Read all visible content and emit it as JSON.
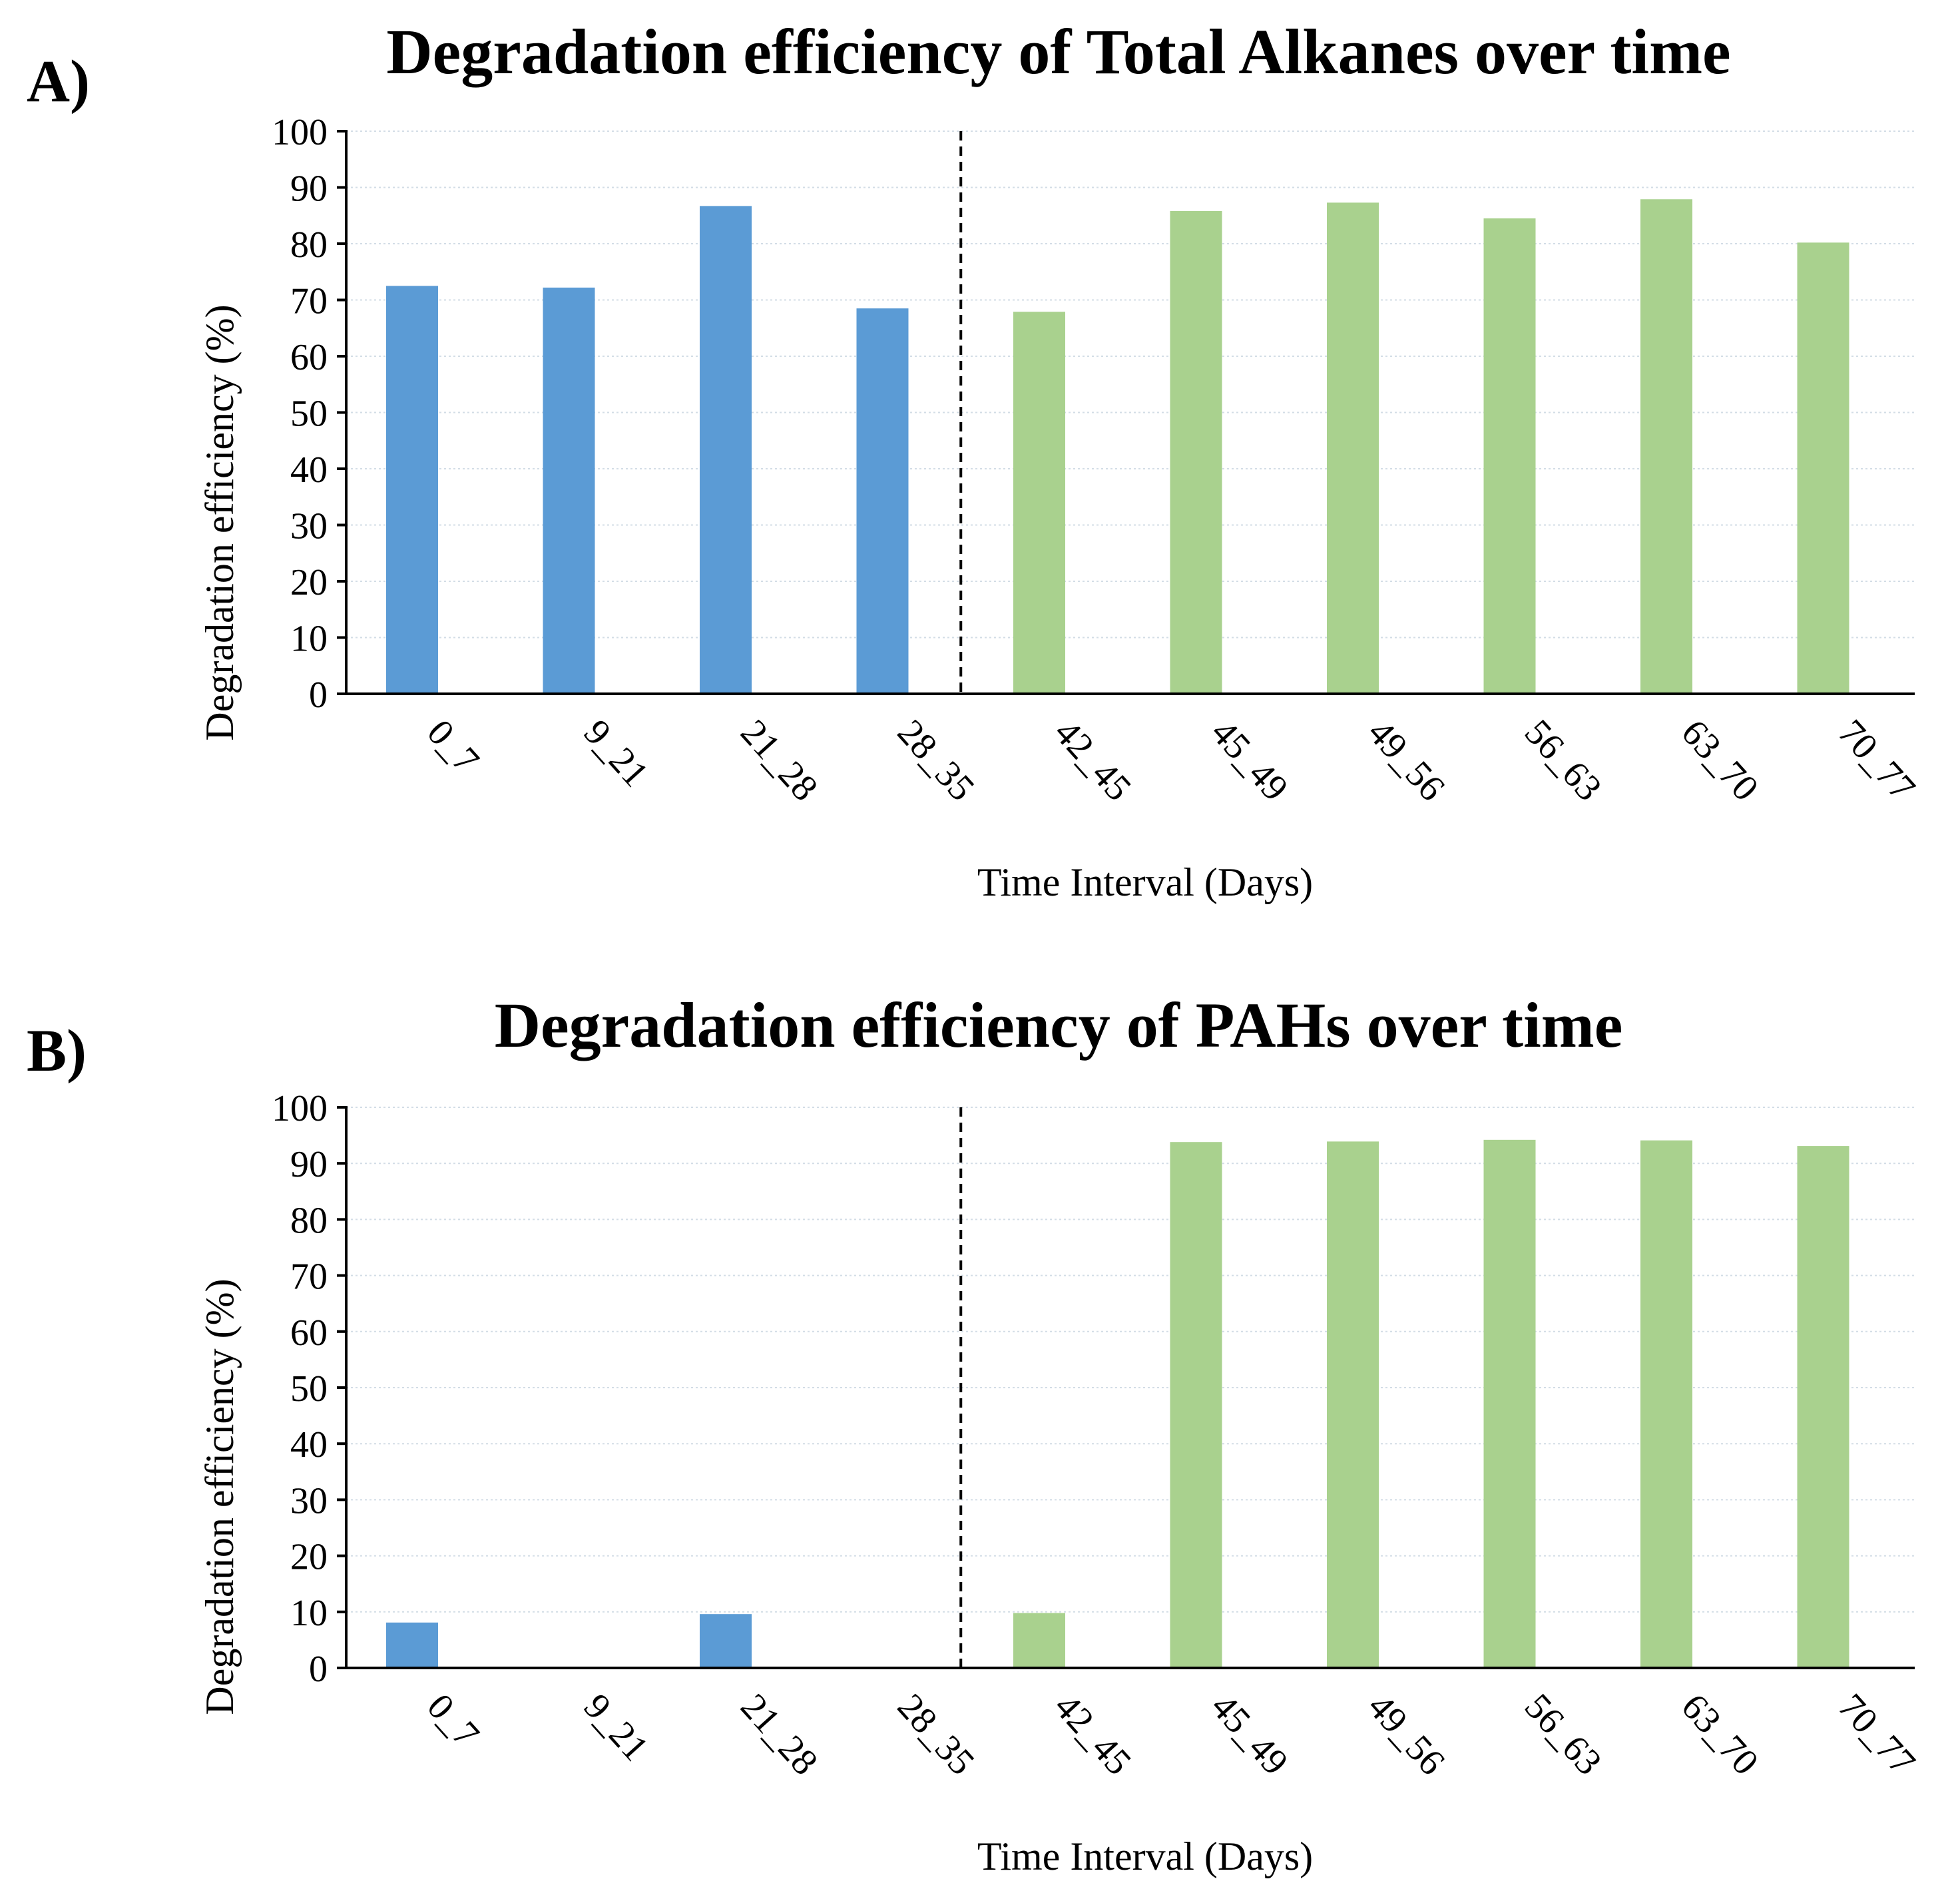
{
  "chart_data": [
    {
      "panel_label": "A)",
      "type": "bar",
      "title": "Degradation efficiency of Total Alkanes over time",
      "xlabel": "Time Interval (Days)",
      "ylabel": "Degradation efficiency (%)",
      "ylim": [
        0,
        100
      ],
      "yticks": [
        0,
        10,
        20,
        30,
        40,
        50,
        60,
        70,
        80,
        90,
        100
      ],
      "grid": true,
      "categories": [
        "0_7",
        "9_21",
        "21_28",
        "28_35",
        "42_45",
        "45_49",
        "49_56",
        "56_63",
        "63_70",
        "70_77"
      ],
      "values": [
        72.5,
        72.2,
        86.7,
        68.5,
        67.9,
        85.8,
        87.3,
        84.5,
        87.9,
        80.2
      ],
      "bar_colors": [
        "#5b9bd5",
        "#5b9bd5",
        "#5b9bd5",
        "#5b9bd5",
        "#a9d18e",
        "#a9d18e",
        "#a9d18e",
        "#a9d18e",
        "#a9d18e",
        "#a9d18e"
      ],
      "divider_after_category": "28_35"
    },
    {
      "panel_label": "B)",
      "type": "bar",
      "title": "Degradation efficiency of PAHs over time",
      "xlabel": "Time Interval (Days)",
      "ylabel": "Degradation efficiency (%)",
      "ylim": [
        0,
        100
      ],
      "yticks": [
        0,
        10,
        20,
        30,
        40,
        50,
        60,
        70,
        80,
        90,
        100
      ],
      "grid": true,
      "categories": [
        "0_7",
        "9_21",
        "21_28",
        "28_35",
        "42_45",
        "45_49",
        "49_56",
        "56_63",
        "63_70",
        "70_77"
      ],
      "values": [
        8.1,
        0,
        9.6,
        0,
        9.8,
        93.8,
        93.9,
        94.2,
        94.1,
        93.1
      ],
      "bar_colors": [
        "#5b9bd5",
        "#5b9bd5",
        "#5b9bd5",
        "#5b9bd5",
        "#a9d18e",
        "#a9d18e",
        "#a9d18e",
        "#a9d18e",
        "#a9d18e",
        "#a9d18e"
      ],
      "divider_after_category": "28_35"
    }
  ]
}
